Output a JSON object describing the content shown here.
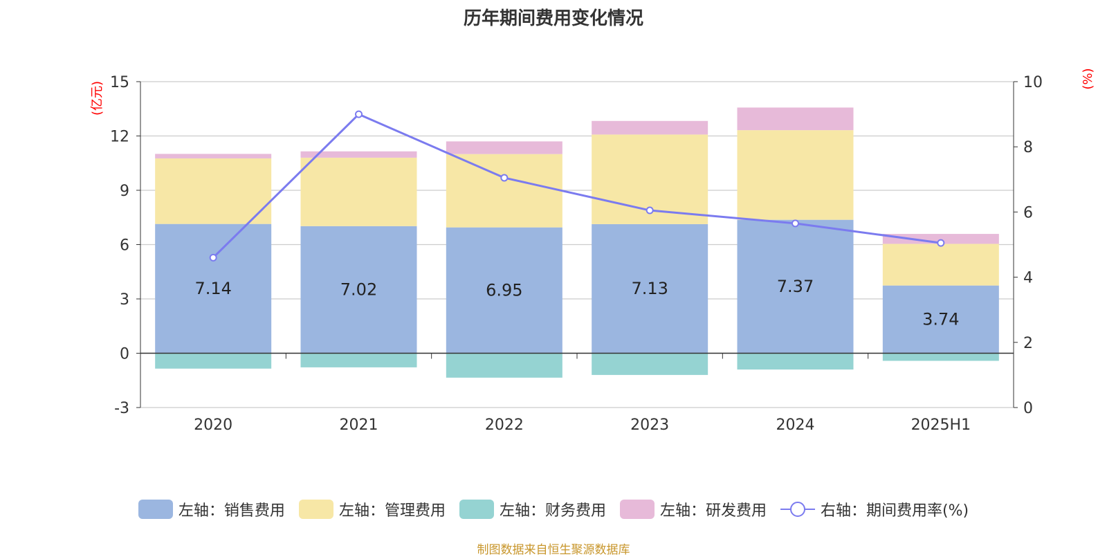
{
  "title": "历年期间费用变化情况",
  "source": "制图数据来自恒生聚源数据库",
  "colors": {
    "sales": "#9bb6e0",
    "admin": "#f7e7a6",
    "finance": "#95d3d2",
    "rd": "#e7bad9",
    "rate": "#7b7bef",
    "axis_title": "#ff0000",
    "source": "#c8962b"
  },
  "chart_data": {
    "type": "bar",
    "categories": [
      "2020",
      "2021",
      "2022",
      "2023",
      "2024",
      "2025H1"
    ],
    "left_axis": {
      "label": "(亿元)",
      "ylim": [
        -3,
        15
      ],
      "ticks": [
        -3,
        0,
        3,
        6,
        9,
        12,
        15
      ]
    },
    "right_axis": {
      "label": "(%)",
      "ylim": [
        0,
        10
      ],
      "ticks": [
        0,
        2,
        4,
        6,
        8,
        10
      ]
    },
    "series": [
      {
        "key": "sales",
        "name": "左轴：销售费用",
        "type": "bar",
        "axis": "left",
        "values": [
          7.14,
          7.02,
          6.95,
          7.13,
          7.37,
          3.74
        ],
        "labels": [
          "7.14",
          "7.02",
          "6.95",
          "7.13",
          "7.37",
          "3.74"
        ]
      },
      {
        "key": "admin",
        "name": "左轴：管理费用",
        "type": "bar",
        "axis": "left",
        "values": [
          3.62,
          3.78,
          4.05,
          4.95,
          4.95,
          2.3
        ]
      },
      {
        "key": "finance",
        "name": "左轴：财务费用",
        "type": "bar",
        "axis": "left",
        "values": [
          -0.85,
          -0.78,
          -1.35,
          -1.2,
          -0.9,
          -0.42
        ]
      },
      {
        "key": "rd",
        "name": "左轴：研发费用",
        "type": "bar",
        "axis": "left",
        "values": [
          0.25,
          0.35,
          0.7,
          0.75,
          1.25,
          0.55
        ]
      },
      {
        "key": "rate",
        "name": "右轴：期间费用率(%)",
        "type": "line",
        "axis": "right",
        "values": [
          4.6,
          9.0,
          7.05,
          6.05,
          5.65,
          5.05
        ]
      }
    ],
    "grid": true,
    "legend_position": "bottom"
  }
}
